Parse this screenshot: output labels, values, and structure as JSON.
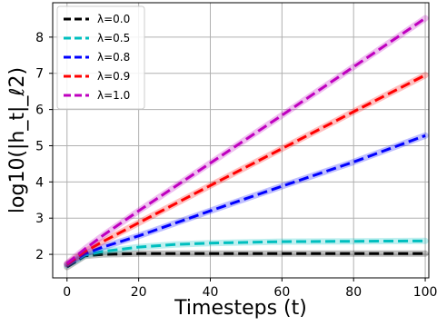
{
  "chart_data": {
    "type": "line",
    "xlabel": "Timesteps (t)",
    "ylabel": "log10(|h_t|_ℓ2)",
    "xlim": [
      -4,
      101
    ],
    "ylim": [
      1.35,
      8.95
    ],
    "xticks": [
      0,
      20,
      40,
      60,
      80,
      100
    ],
    "yticks": [
      2,
      3,
      4,
      5,
      6,
      7,
      8
    ],
    "grid": true,
    "legend_position": "top-left",
    "series": [
      {
        "name": "λ=0.0",
        "color": "#000000",
        "x": [
          0,
          5,
          10,
          20,
          40,
          60,
          80,
          100
        ],
        "y": [
          1.65,
          1.96,
          2.0,
          2.02,
          2.02,
          2.02,
          2.02,
          2.02
        ]
      },
      {
        "name": "λ=0.5",
        "color": "#00bfbf",
        "x": [
          0,
          5,
          10,
          20,
          30,
          40,
          60,
          80,
          100
        ],
        "y": [
          1.7,
          1.98,
          2.08,
          2.2,
          2.27,
          2.31,
          2.35,
          2.36,
          2.37
        ]
      },
      {
        "name": "λ=0.8",
        "color": "#0000ff",
        "x": [
          0,
          5,
          10,
          20,
          40,
          60,
          80,
          100
        ],
        "y": [
          1.72,
          2.02,
          2.2,
          2.51,
          3.2,
          3.88,
          4.55,
          5.28
        ]
      },
      {
        "name": "λ=0.9",
        "color": "#ff0000",
        "x": [
          0,
          5,
          10,
          20,
          40,
          60,
          80,
          100
        ],
        "y": [
          1.73,
          2.08,
          2.35,
          2.87,
          3.9,
          4.92,
          5.94,
          6.95
        ]
      },
      {
        "name": "λ=1.0",
        "color": "#bf00bf",
        "x": [
          0,
          5,
          10,
          20,
          40,
          60,
          80,
          100
        ],
        "y": [
          1.75,
          2.15,
          2.52,
          3.2,
          4.52,
          5.84,
          7.18,
          8.52
        ]
      }
    ]
  }
}
